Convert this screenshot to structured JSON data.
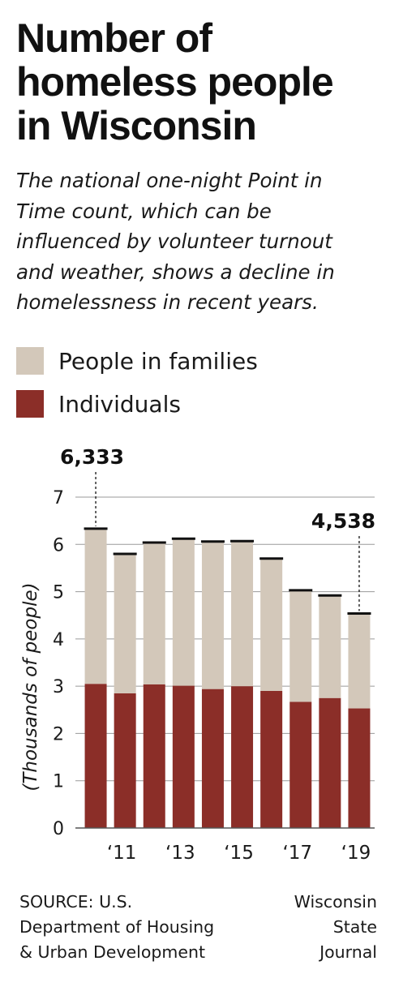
{
  "header": {
    "title_lines": [
      "Number of",
      "homeless people",
      "in Wisconsin"
    ],
    "subtitle_lines": [
      "The national one-night Point in",
      "Time count, which can be",
      "influenced by volunteer turnout",
      "and weather, shows a decline in",
      "homelessness in recent years."
    ]
  },
  "legend": [
    {
      "label": "People in families",
      "color": "#d3c8ba"
    },
    {
      "label": "Individuals",
      "color": "#8b2e28"
    }
  ],
  "chart_data": {
    "type": "bar",
    "stacked": true,
    "categories": [
      "2010",
      "2011",
      "2012",
      "2013",
      "2014",
      "2015",
      "2016",
      "2017",
      "2018",
      "2019"
    ],
    "tick_labels": [
      "",
      "‘11",
      "",
      "‘13",
      "",
      "‘15",
      "",
      "‘17",
      "",
      "‘19"
    ],
    "series": [
      {
        "name": "Individuals",
        "color": "#8b2e28",
        "values": [
          3.05,
          2.85,
          3.04,
          3.01,
          2.94,
          3.0,
          2.9,
          2.67,
          2.75,
          2.53
        ]
      },
      {
        "name": "People in families",
        "color": "#d3c8ba",
        "values": [
          3.28,
          2.95,
          3.0,
          3.11,
          3.12,
          3.07,
          2.8,
          2.36,
          2.17,
          2.01
        ]
      }
    ],
    "totals": [
      6.333,
      5.8,
      6.04,
      6.12,
      6.06,
      6.07,
      5.7,
      5.03,
      4.92,
      4.538
    ],
    "ylabel": "(Thousands of people)",
    "ylim": [
      0,
      7
    ],
    "yticks": [
      0,
      1,
      2,
      3,
      4,
      5,
      6,
      7
    ],
    "grid": true,
    "annotations": [
      {
        "index": 0,
        "text": "6,333"
      },
      {
        "index": 9,
        "text": "4,538"
      }
    ]
  },
  "footer": {
    "source_lines": [
      "SOURCE: U.S.",
      "Department of Housing",
      "& Urban Development"
    ],
    "credit_lines": [
      "Wisconsin",
      "State",
      "Journal"
    ]
  }
}
